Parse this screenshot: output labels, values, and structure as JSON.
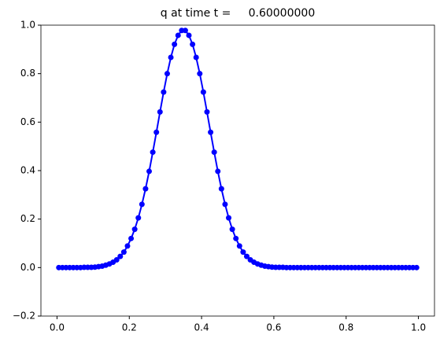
{
  "chart_data": {
    "type": "line",
    "title": "q at time t =     0.60000000",
    "color": "#0000ff",
    "x": [
      0.005,
      0.015,
      0.025,
      0.035,
      0.045,
      0.055,
      0.065,
      0.075,
      0.085,
      0.095,
      0.105,
      0.115,
      0.125,
      0.135,
      0.145,
      0.155,
      0.165,
      0.175,
      0.185,
      0.195,
      0.205,
      0.215,
      0.225,
      0.235,
      0.245,
      0.255,
      0.265,
      0.275,
      0.285,
      0.295,
      0.305,
      0.315,
      0.325,
      0.335,
      0.345,
      0.355,
      0.365,
      0.375,
      0.385,
      0.395,
      0.405,
      0.415,
      0.425,
      0.435,
      0.445,
      0.455,
      0.465,
      0.475,
      0.485,
      0.495,
      0.505,
      0.515,
      0.525,
      0.535,
      0.545,
      0.555,
      0.565,
      0.575,
      0.585,
      0.595,
      0.605,
      0.615,
      0.625,
      0.635,
      0.645,
      0.655,
      0.665,
      0.675,
      0.685,
      0.695,
      0.705,
      0.715,
      0.725,
      0.735,
      0.745,
      0.755,
      0.765,
      0.775,
      0.785,
      0.795,
      0.805,
      0.815,
      0.825,
      0.835,
      0.845,
      0.855,
      0.865,
      0.875,
      0.885,
      0.895,
      0.905,
      0.915,
      0.925,
      0.935,
      0.945,
      0.955,
      0.965,
      0.975,
      0.985,
      0.995
    ],
    "values": [
      0,
      0,
      0,
      0,
      0,
      0,
      0,
      0.001,
      0.001,
      0.001,
      0.002,
      0.004,
      0.006,
      0.01,
      0.015,
      0.022,
      0.032,
      0.046,
      0.064,
      0.089,
      0.12,
      0.158,
      0.205,
      0.261,
      0.325,
      0.397,
      0.476,
      0.558,
      0.642,
      0.724,
      0.8,
      0.867,
      0.921,
      0.958,
      0.978,
      0.978,
      0.958,
      0.921,
      0.867,
      0.8,
      0.724,
      0.642,
      0.558,
      0.476,
      0.397,
      0.325,
      0.261,
      0.205,
      0.158,
      0.12,
      0.089,
      0.064,
      0.046,
      0.032,
      0.022,
      0.015,
      0.01,
      0.006,
      0.004,
      0.002,
      0.001,
      0.001,
      0.001,
      0,
      0,
      0,
      0,
      0,
      0,
      0,
      0,
      0,
      0,
      0,
      0,
      0,
      0,
      0,
      0,
      0,
      0,
      0,
      0,
      0,
      0,
      0,
      0,
      0,
      0,
      0,
      0,
      0,
      0,
      0,
      0,
      0,
      0,
      0,
      0,
      0
    ],
    "xlim": [
      -0.0445,
      1.0445
    ],
    "ylim": [
      -0.2,
      1.0
    ],
    "xticks": [
      {
        "value": 0,
        "label": "0.0"
      },
      {
        "value": 0.2,
        "label": "0.2"
      },
      {
        "value": 0.4,
        "label": "0.4"
      },
      {
        "value": 0.6,
        "label": "0.6"
      },
      {
        "value": 0.8,
        "label": "0.8"
      },
      {
        "value": 1,
        "label": "1.0"
      }
    ],
    "yticks": [
      {
        "value": -0.2,
        "label": "−0.2"
      },
      {
        "value": 0,
        "label": "0.0"
      },
      {
        "value": 0.2,
        "label": "0.2"
      },
      {
        "value": 0.4,
        "label": "0.4"
      },
      {
        "value": 0.6,
        "label": "0.6"
      },
      {
        "value": 0.8,
        "label": "0.8"
      },
      {
        "value": 1,
        "label": "1.0"
      }
    ],
    "grid": false
  }
}
